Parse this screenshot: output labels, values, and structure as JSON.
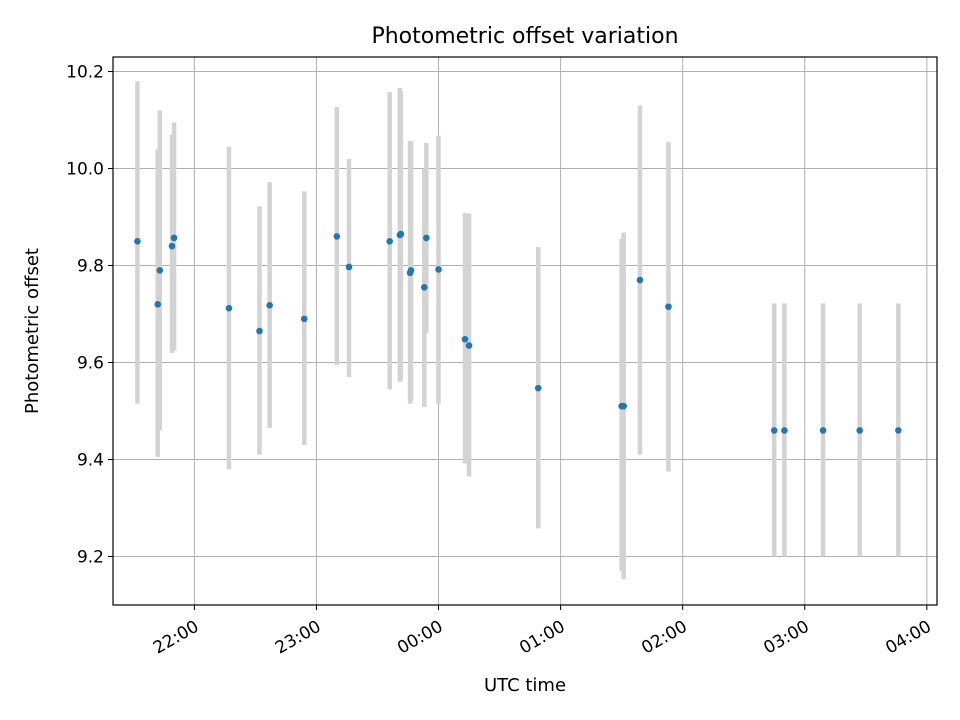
{
  "chart_data": {
    "type": "scatter",
    "title": "Photometric offset variation",
    "xlabel": "UTC time",
    "ylabel": "Photometric offset",
    "xlim": [
      "21:20",
      "04:05"
    ],
    "ylim": [
      9.1,
      10.23
    ],
    "grid": true,
    "colors": {
      "point": "#1f77b4",
      "errorbar": "#d3d3d3",
      "grid": "#b0b0b0"
    },
    "x_ticks": [
      "22:00",
      "23:00",
      "00:00",
      "01:00",
      "02:00",
      "03:00",
      "04:00"
    ],
    "y_ticks": [
      "9.2",
      "9.4",
      "9.6",
      "9.8",
      "10.0",
      "10.2"
    ],
    "series": [
      {
        "points": [
          {
            "x": "21:32",
            "y": 9.85,
            "lo": 9.515,
            "hi": 10.18
          },
          {
            "x": "21:42",
            "y": 9.72,
            "lo": 9.405,
            "hi": 10.04
          },
          {
            "x": "21:43",
            "y": 9.79,
            "lo": 9.46,
            "hi": 10.12
          },
          {
            "x": "21:49",
            "y": 9.84,
            "lo": 9.62,
            "hi": 10.07
          },
          {
            "x": "21:50",
            "y": 9.857,
            "lo": 9.625,
            "hi": 10.095
          },
          {
            "x": "22:17",
            "y": 9.712,
            "lo": 9.38,
            "hi": 10.045
          },
          {
            "x": "22:32",
            "y": 9.665,
            "lo": 9.41,
            "hi": 9.922
          },
          {
            "x": "22:37",
            "y": 9.718,
            "lo": 9.465,
            "hi": 9.972
          },
          {
            "x": "22:54",
            "y": 9.69,
            "lo": 9.43,
            "hi": 9.953
          },
          {
            "x": "23:10",
            "y": 9.86,
            "lo": 9.595,
            "hi": 10.127
          },
          {
            "x": "23:16",
            "y": 9.797,
            "lo": 9.57,
            "hi": 10.02
          },
          {
            "x": "23:36",
            "y": 9.85,
            "lo": 9.545,
            "hi": 10.158
          },
          {
            "x": "23:41",
            "y": 9.863,
            "lo": 9.56,
            "hi": 10.166
          },
          {
            "x": "23:41.5",
            "y": 9.865,
            "lo": 9.565,
            "hi": 10.16
          },
          {
            "x": "23:46",
            "y": 9.785,
            "lo": 9.515,
            "hi": 10.057
          },
          {
            "x": "23:46.5",
            "y": 9.79,
            "lo": 9.52,
            "hi": 10.056
          },
          {
            "x": "23:53",
            "y": 9.755,
            "lo": 9.508,
            "hi": 10.0
          },
          {
            "x": "23:54",
            "y": 9.857,
            "lo": 9.66,
            "hi": 10.053
          },
          {
            "x": "00:00",
            "y": 9.792,
            "lo": 9.515,
            "hi": 10.068
          },
          {
            "x": "00:13",
            "y": 9.648,
            "lo": 9.392,
            "hi": 9.908
          },
          {
            "x": "00:15",
            "y": 9.635,
            "lo": 9.365,
            "hi": 9.907
          },
          {
            "x": "00:49",
            "y": 9.547,
            "lo": 9.258,
            "hi": 9.838
          },
          {
            "x": "01:30",
            "y": 9.51,
            "lo": 9.17,
            "hi": 9.855
          },
          {
            "x": "01:31",
            "y": 9.51,
            "lo": 9.153,
            "hi": 9.868
          },
          {
            "x": "01:39",
            "y": 9.77,
            "lo": 9.41,
            "hi": 10.13
          },
          {
            "x": "01:53",
            "y": 9.715,
            "lo": 9.375,
            "hi": 10.055
          },
          {
            "x": "02:45",
            "y": 9.46,
            "lo": 9.2,
            "hi": 9.722
          },
          {
            "x": "02:50",
            "y": 9.46,
            "lo": 9.2,
            "hi": 9.722
          },
          {
            "x": "03:09",
            "y": 9.46,
            "lo": 9.2,
            "hi": 9.722
          },
          {
            "x": "03:27",
            "y": 9.46,
            "lo": 9.2,
            "hi": 9.722
          },
          {
            "x": "03:46",
            "y": 9.46,
            "lo": 9.2,
            "hi": 9.722
          }
        ]
      }
    ]
  }
}
